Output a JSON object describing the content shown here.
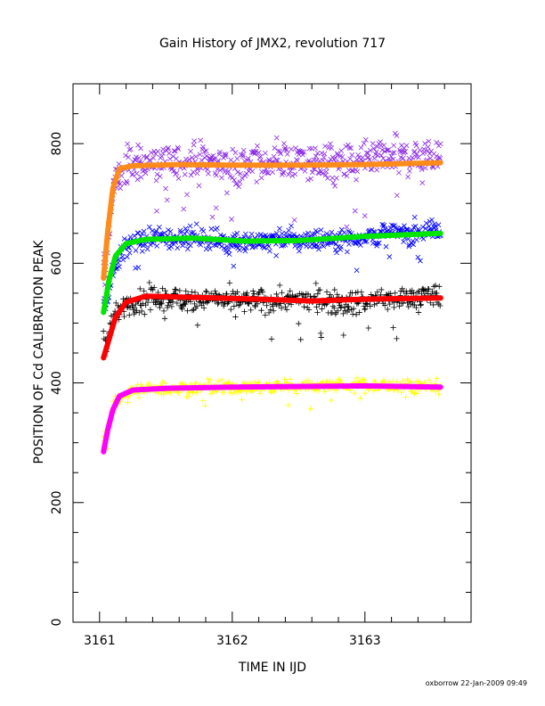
{
  "chart_data": {
    "type": "scatter",
    "title": "Gain History of JMX2, revolution 717",
    "xlabel": "TIME IN IJD",
    "ylabel": "POSITION OF Cd CALIBRATION PEAK",
    "footer": "oxborrow 22-Jan-2009 09:49",
    "xlim": [
      3160.8,
      3163.8
    ],
    "ylim": [
      0,
      900
    ],
    "x_ticks": [
      3161,
      3162,
      3163
    ],
    "x_tick_labels": [
      "3161",
      "3162",
      "3163"
    ],
    "y_ticks": [
      0,
      200,
      400,
      600,
      800
    ],
    "y_tick_labels": [
      "0",
      "200",
      "400",
      "600",
      "800"
    ],
    "grid": false,
    "legend": "none",
    "x_range": [
      3161.03,
      3163.57
    ],
    "series": [
      {
        "kind": "scatter",
        "marker": "x",
        "color": "#8b2be2",
        "points": [
          [
            3161.05,
            585
          ],
          [
            3161.08,
            680
          ],
          [
            3161.12,
            740
          ],
          [
            3161.2,
            760
          ],
          [
            3161.3,
            770
          ],
          [
            3161.5,
            765
          ],
          [
            3161.8,
            775
          ],
          [
            3162.0,
            760
          ],
          [
            3162.3,
            770
          ],
          [
            3162.6,
            770
          ],
          [
            3162.9,
            765
          ],
          [
            3163.2,
            775
          ],
          [
            3163.55,
            780
          ]
        ],
        "spread": 28
      },
      {
        "kind": "fit",
        "color": "#ff8c1a",
        "points": [
          [
            3161.03,
            575
          ],
          [
            3161.06,
            650
          ],
          [
            3161.1,
            725
          ],
          [
            3161.15,
            758
          ],
          [
            3161.25,
            763
          ],
          [
            3161.6,
            765
          ],
          [
            3162.0,
            764
          ],
          [
            3162.5,
            764
          ],
          [
            3163.0,
            765
          ],
          [
            3163.57,
            768
          ]
        ]
      },
      {
        "kind": "scatter",
        "marker": "x",
        "color": "#0000ff",
        "points": [
          [
            3161.05,
            535
          ],
          [
            3161.1,
            590
          ],
          [
            3161.2,
            630
          ],
          [
            3161.4,
            640
          ],
          [
            3161.7,
            645
          ],
          [
            3162.0,
            635
          ],
          [
            3162.4,
            640
          ],
          [
            3162.8,
            640
          ],
          [
            3163.2,
            650
          ],
          [
            3163.55,
            655
          ]
        ],
        "spread": 16
      },
      {
        "kind": "fit",
        "color": "#00e600",
        "points": [
          [
            3161.03,
            518
          ],
          [
            3161.07,
            570
          ],
          [
            3161.12,
            612
          ],
          [
            3161.2,
            633
          ],
          [
            3161.35,
            640
          ],
          [
            3161.7,
            642
          ],
          [
            3162.1,
            637
          ],
          [
            3162.5,
            638
          ],
          [
            3163.0,
            645
          ],
          [
            3163.57,
            650
          ]
        ]
      },
      {
        "kind": "scatter",
        "marker": "plus",
        "color": "#000000",
        "points": [
          [
            3161.05,
            470
          ],
          [
            3161.12,
            515
          ],
          [
            3161.2,
            530
          ],
          [
            3161.4,
            540
          ],
          [
            3161.8,
            540
          ],
          [
            3162.1,
            535
          ],
          [
            3162.5,
            540
          ],
          [
            3162.9,
            535
          ],
          [
            3163.2,
            540
          ],
          [
            3163.55,
            545
          ]
        ],
        "spread": 18
      },
      {
        "kind": "fit",
        "color": "#ff0000",
        "points": [
          [
            3161.03,
            442
          ],
          [
            3161.07,
            472
          ],
          [
            3161.12,
            510
          ],
          [
            3161.2,
            535
          ],
          [
            3161.35,
            545
          ],
          [
            3161.7,
            543
          ],
          [
            3162.2,
            540
          ],
          [
            3162.6,
            537
          ],
          [
            3163.0,
            540
          ],
          [
            3163.57,
            542
          ]
        ]
      },
      {
        "kind": "scatter",
        "marker": "plus",
        "color": "#ffff00",
        "points": [
          [
            3161.05,
            310
          ],
          [
            3161.1,
            360
          ],
          [
            3161.2,
            385
          ],
          [
            3161.4,
            390
          ],
          [
            3161.8,
            392
          ],
          [
            3162.1,
            392
          ],
          [
            3162.5,
            395
          ],
          [
            3162.9,
            396
          ],
          [
            3163.2,
            395
          ],
          [
            3163.55,
            395
          ]
        ],
        "spread": 10
      },
      {
        "kind": "fit",
        "color": "#ff00ff",
        "points": [
          [
            3161.03,
            285
          ],
          [
            3161.06,
            320
          ],
          [
            3161.1,
            355
          ],
          [
            3161.15,
            378
          ],
          [
            3161.25,
            388
          ],
          [
            3161.5,
            391
          ],
          [
            3162.0,
            393
          ],
          [
            3162.5,
            394
          ],
          [
            3163.0,
            395
          ],
          [
            3163.57,
            393
          ]
        ]
      }
    ]
  }
}
